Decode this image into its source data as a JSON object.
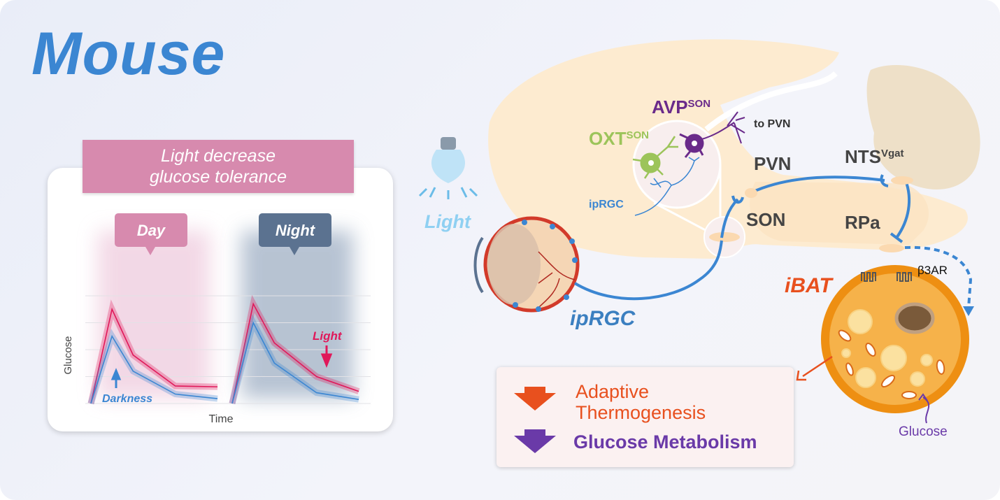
{
  "title": "Mouse",
  "panel": {
    "banner_line1": "Light decrease",
    "banner_line2": "glucose tolerance",
    "day_label": "Day",
    "night_label": "Night",
    "darkness_label": "Darkness",
    "light_label": "Light"
  },
  "chart_data": {
    "type": "line",
    "xlabel": "Time",
    "ylabel": "Glucose",
    "grid": true,
    "panels": [
      {
        "name": "Day",
        "x": [
          0,
          1,
          2,
          4,
          6
        ],
        "series": [
          {
            "name": "Light",
            "color": "#e0185a",
            "values": [
              0,
              3.5,
              1.8,
              0.65,
              0.62
            ]
          },
          {
            "name": "Darkness",
            "color": "#3b86d2",
            "values": [
              0,
              2.5,
              1.2,
              0.35,
              0.18
            ]
          }
        ]
      },
      {
        "name": "Night",
        "x": [
          0,
          1,
          2,
          4,
          6
        ],
        "series": [
          {
            "name": "Light",
            "color": "#e0185a",
            "values": [
              0,
              3.7,
              2.25,
              1.0,
              0.45
            ]
          },
          {
            "name": "Darkness",
            "color": "#3b86d2",
            "values": [
              0,
              3.0,
              1.5,
              0.4,
              0.15
            ]
          }
        ]
      }
    ]
  },
  "diagram": {
    "light_label": "Light",
    "ipRGC_eye_label": "ipRGC",
    "ipRGC_small_label": "ipRGC",
    "avp_label": "AVP",
    "avp_sup": "SON",
    "oxt_label": "OXT",
    "oxt_sup": "SON",
    "to_pvn": "to PVN",
    "pvn": "PVN",
    "son": "SON",
    "nts": "NTS",
    "nts_sup": "Vgat",
    "rpa": "RPa",
    "ibat": "iBAT",
    "b3ar": "β3AR",
    "glucose": "Glucose"
  },
  "result": {
    "item1_line1": "Adaptive",
    "item1_line2": "Thermogenesis",
    "item2": "Glucose Metabolism"
  },
  "colors": {
    "blue": "#3b86d2",
    "pink": "#d78aae",
    "night": "#5b7290",
    "orange": "#e8501e",
    "purple": "#6a3aa8",
    "green": "#9cc45a",
    "brain": "#fdebd0"
  }
}
